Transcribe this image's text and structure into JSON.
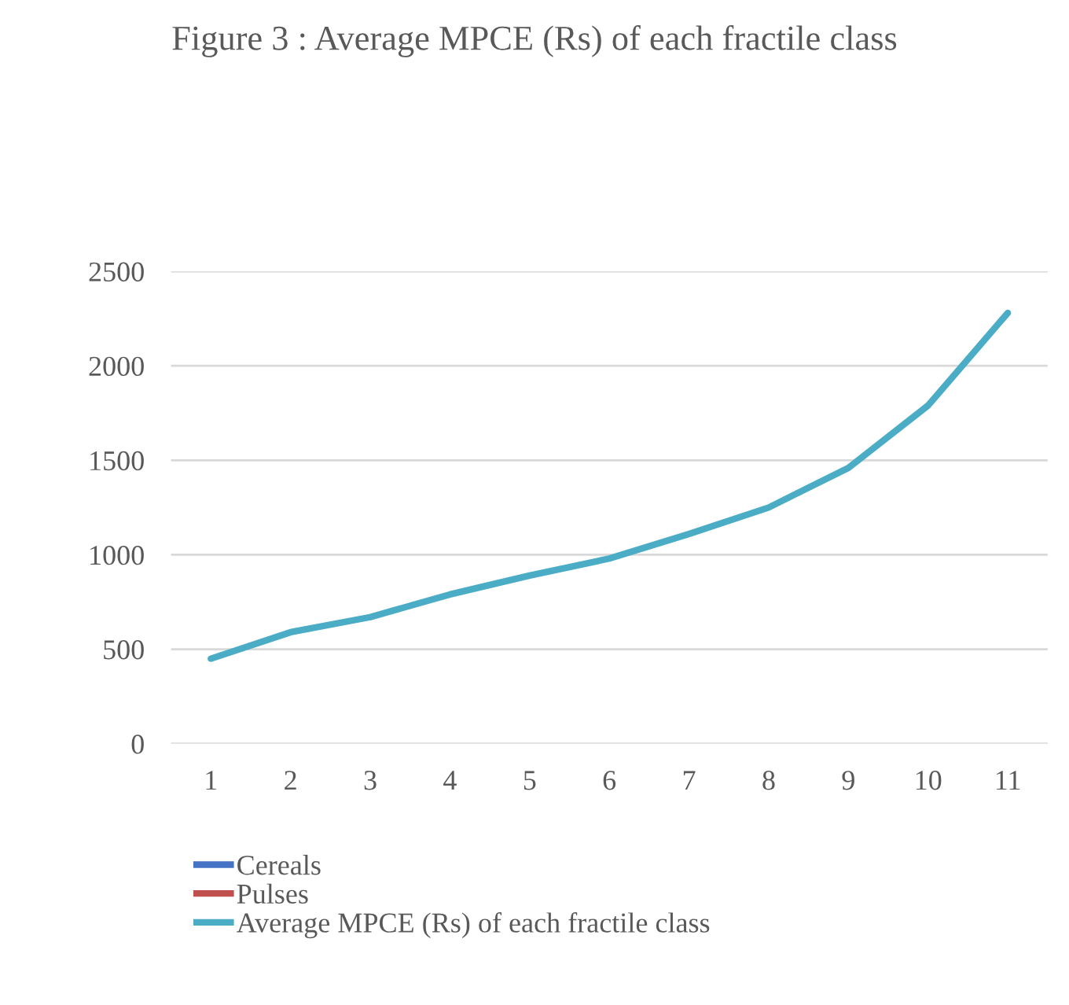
{
  "chart_data": {
    "type": "line",
    "title": "Figure 3 : Average MPCE (Rs) of each fractile class",
    "categories": [
      "1",
      "2",
      "3",
      "4",
      "5",
      "6",
      "7",
      "8",
      "9",
      "10",
      "11"
    ],
    "series": [
      {
        "name": "Cereals",
        "color": "#4472c4",
        "values": [
          null,
          null,
          null,
          null,
          null,
          null,
          null,
          null,
          null,
          null,
          null
        ]
      },
      {
        "name": "Pulses",
        "color": "#c0504d",
        "values": [
          null,
          null,
          null,
          null,
          null,
          null,
          null,
          null,
          null,
          null,
          null
        ]
      },
      {
        "name": "Average MPCE (Rs) of each fractile class",
        "color": "#4bacc6",
        "values": [
          450,
          590,
          670,
          790,
          890,
          980,
          1110,
          1250,
          1460,
          1790,
          2280
        ]
      }
    ],
    "ylim": [
      0,
      2500
    ],
    "yticks": [
      0,
      500,
      1000,
      1500,
      2000,
      2500
    ],
    "grid": "y",
    "legend": "bottom",
    "marker": "none",
    "line_style": "solid"
  }
}
